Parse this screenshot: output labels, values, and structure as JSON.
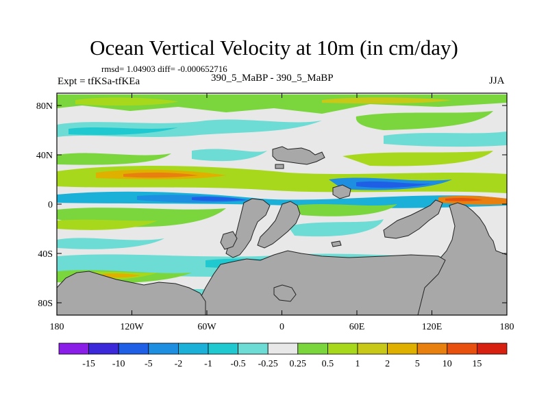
{
  "header": {
    "title": "Ocean Vertical Velocity at 10m (in cm/day)",
    "stats": "rmsd= 1.04903 diff= -0.000652716",
    "left_label": "Expt = tfKSa-tfKEa",
    "center_label": "390_5_MaBP - 390_5_MaBP",
    "right_label": "JJA"
  },
  "chart_data": {
    "type": "heatmap",
    "title": "Ocean Vertical Velocity at 10m (in cm/day)",
    "subtitle": "390_5_MaBP - 390_5_MaBP",
    "season": "JJA",
    "experiment": "tfKSa-tfKEa",
    "statistics": {
      "rmsd": 1.04903,
      "diff": -0.000652716
    },
    "x_axis": {
      "lim": [
        -180,
        180
      ],
      "ticks": [
        -180,
        -120,
        -60,
        0,
        60,
        120,
        180
      ],
      "tick_labels": [
        "180",
        "120W",
        "60W",
        "0",
        "60E",
        "120E",
        "180"
      ]
    },
    "y_axis": {
      "lim": [
        -90,
        90
      ],
      "ticks": [
        80,
        40,
        0,
        -40,
        -80
      ],
      "tick_labels": [
        "80N",
        "40N",
        "0",
        "40S",
        "80S"
      ]
    },
    "colorbar": {
      "levels": [
        -15,
        -10,
        -5,
        -2,
        -1,
        -0.5,
        -0.25,
        0.25,
        0.5,
        1,
        2,
        5,
        10,
        15
      ],
      "labels": [
        "-15",
        "-10",
        "-5",
        "-2",
        "-1",
        "-0.5",
        "-0.25",
        "0.25",
        "0.5",
        "1",
        "2",
        "5",
        "10",
        "15"
      ],
      "colors": [
        "#8a1ee8",
        "#3b28d8",
        "#1f5fe6",
        "#1e8ee0",
        "#1ab0d8",
        "#20c8d0",
        "#6cdcd4",
        "#e8e8e8",
        "#7ad63c",
        "#a8d81c",
        "#c8c818",
        "#e0b000",
        "#e88010",
        "#e85010",
        "#d82010"
      ]
    },
    "land_color": "#a8a8a8"
  }
}
